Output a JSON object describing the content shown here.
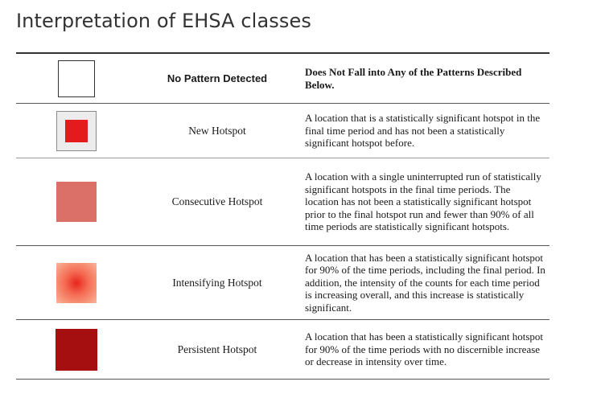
{
  "title": "Interpretation of EHSA classes",
  "rows": [
    {
      "name": "No Pattern Detected",
      "description": "Does Not Fall into Any of the Patterns Described Below."
    },
    {
      "name": "New Hotspot",
      "description": "A location that is a statistically significant hotspot in the final time period and has not been a statistically significant hotspot before."
    },
    {
      "name": "Consecutive Hotspot",
      "description": "A location with a single uninterrupted run of statistically significant hotspots in the final time periods. The location has not been a statistically significant hotspot prior to the final hotspot run and fewer than 90% of all time periods are statistically significant hotspots."
    },
    {
      "name": "Intensifying Hotspot",
      "description": "A location that has been a statistically significant hotspot for 90% of the time periods, including the final period. In addition, the intensity of the counts for each time period is increasing overall, and this increase is statistically significant."
    },
    {
      "name": "Persistent Hotspot",
      "description": "A location that has been a statistically significant hotspot for 90% of the time periods with no discernible increase or decrease in intensity over time."
    }
  ],
  "colors": {
    "new_hotspot": "#e41a1c",
    "consecutive_hotspot": "#db7068",
    "intensifying_hotspot": "#e8261e",
    "persistent_hotspot": "#a50f0f"
  }
}
